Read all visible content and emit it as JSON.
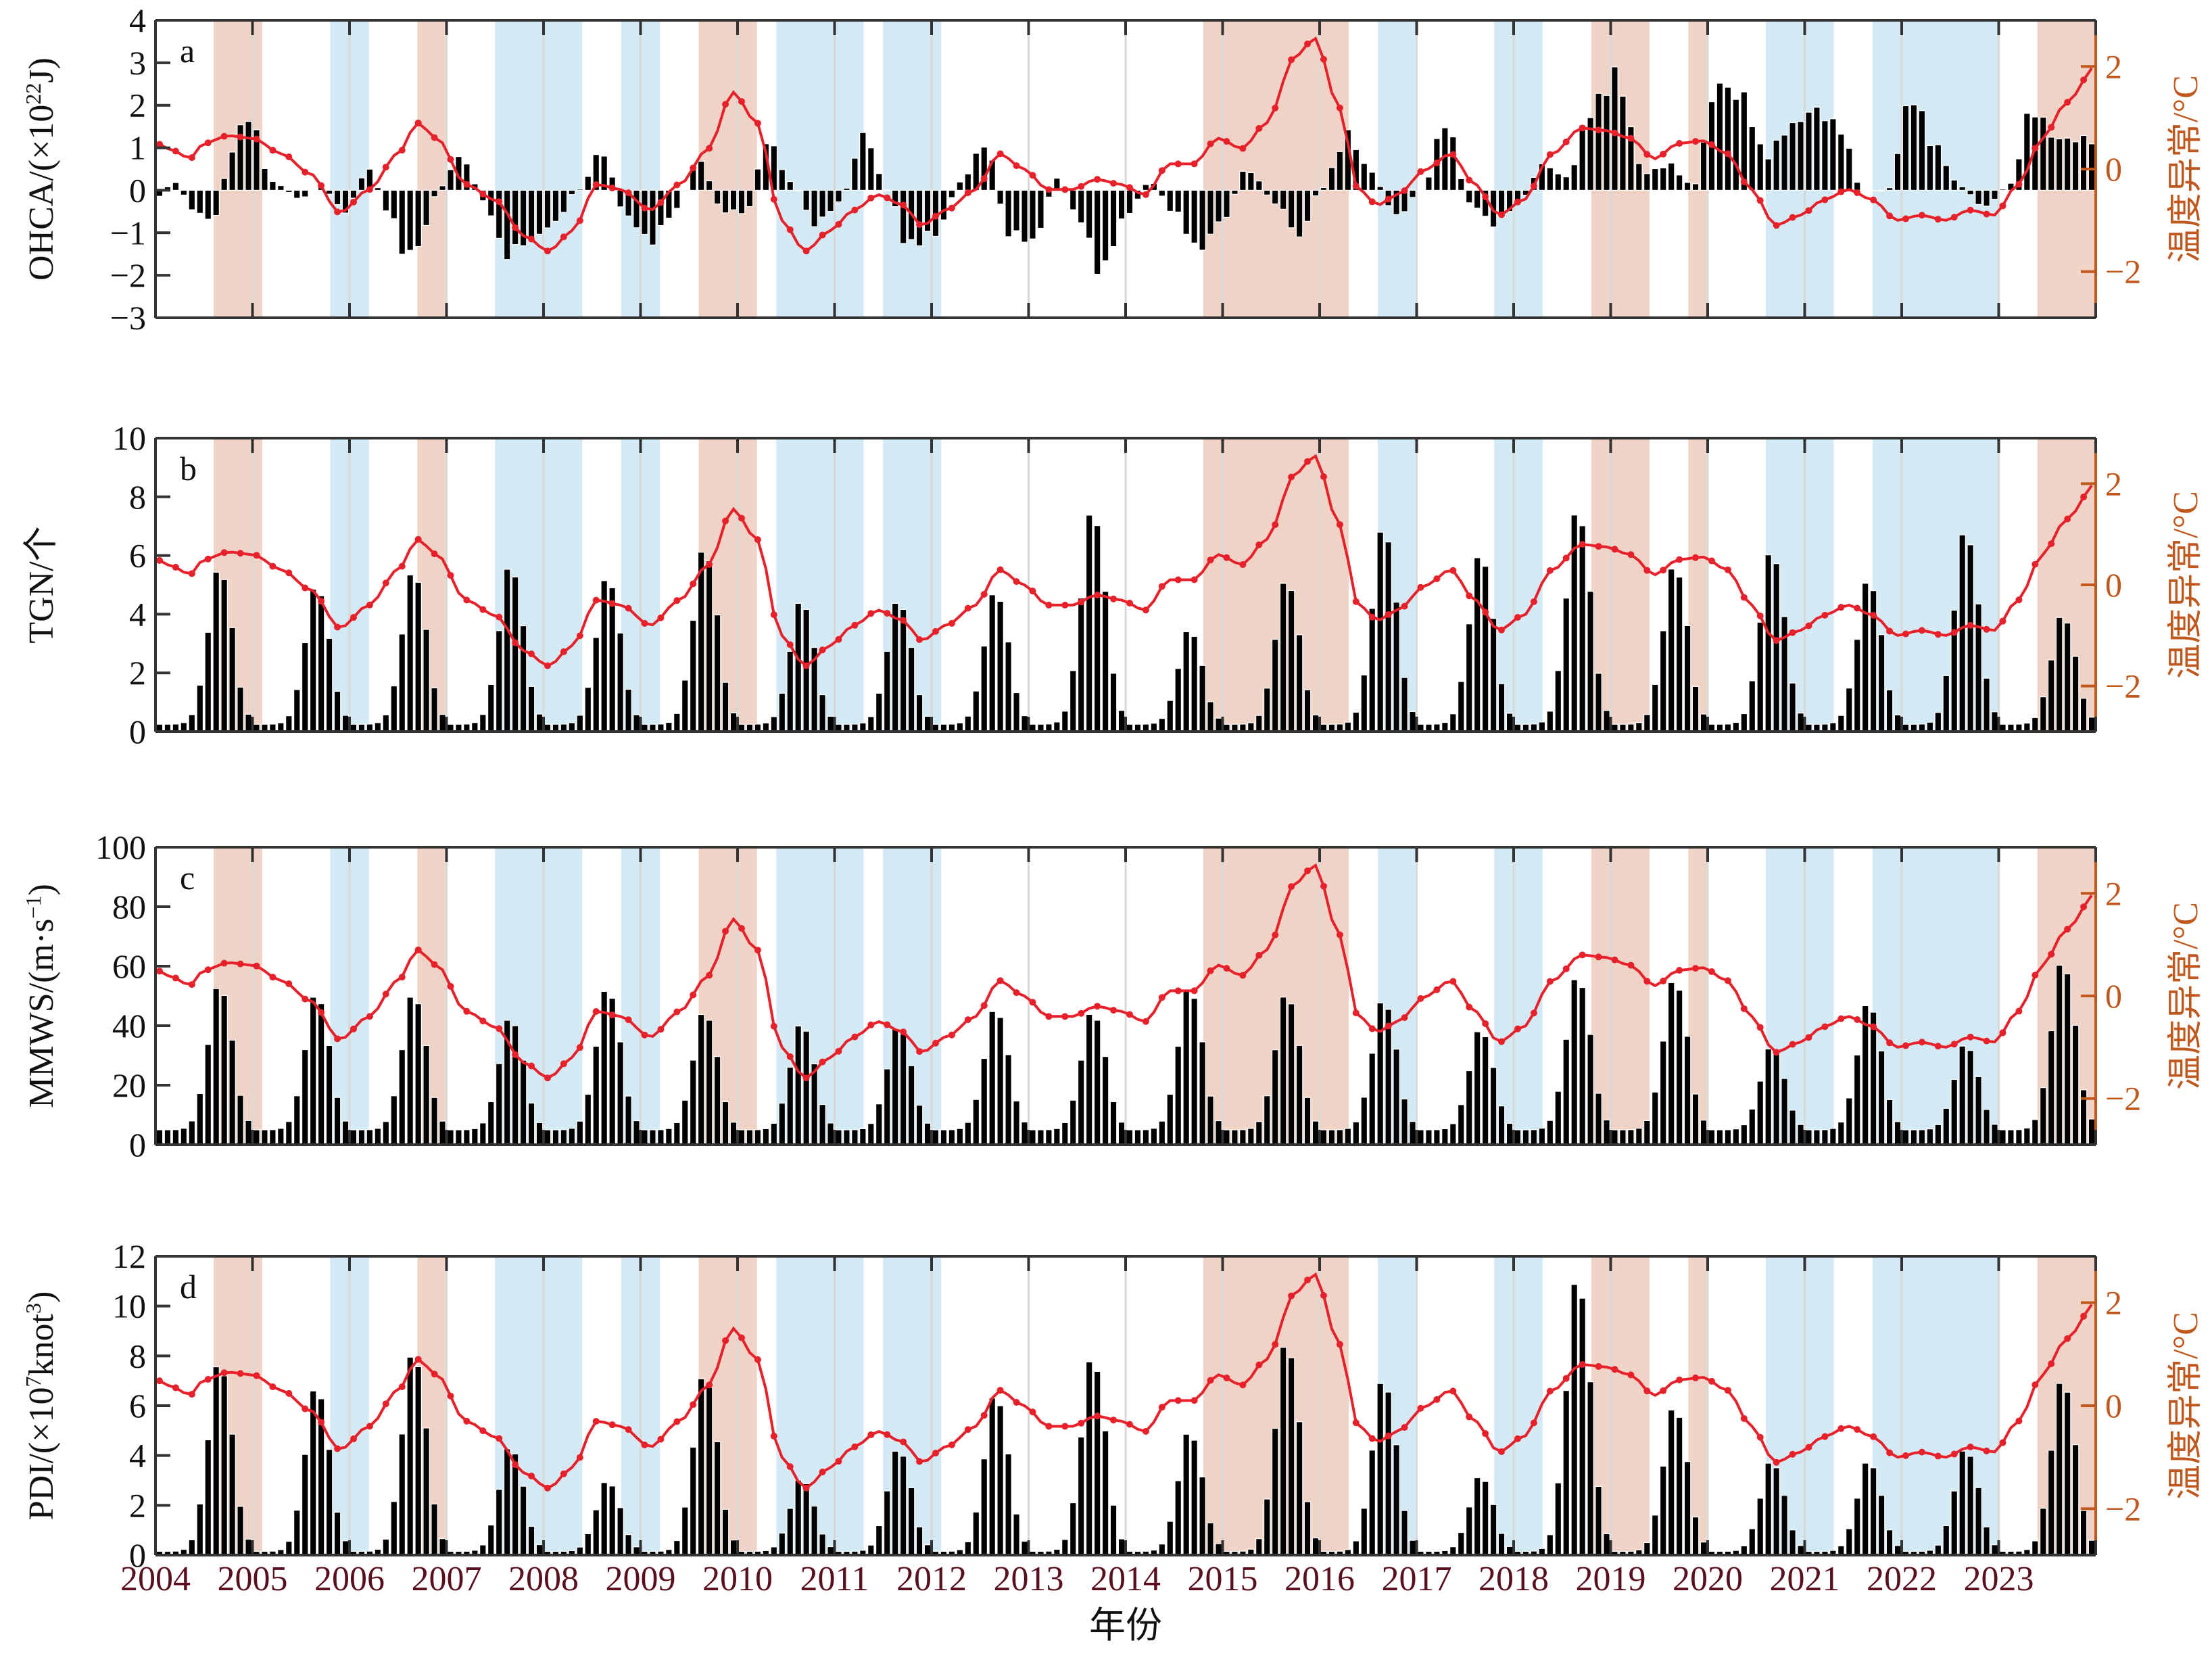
{
  "chart_data": {
    "type": "bar+line",
    "x_label": "年份",
    "x_range": [
      2004.0,
      2024.0
    ],
    "years": [
      "2004",
      "2005",
      "2006",
      "2007",
      "2008",
      "2009",
      "2010",
      "2011",
      "2012",
      "2013",
      "2014",
      "2015",
      "2016",
      "2017",
      "2018",
      "2019",
      "2020",
      "2021",
      "2022",
      "2023"
    ],
    "colors": {
      "bar": "#000000",
      "line": "#e8202a",
      "right_axis": "#c0571d",
      "el_nino_shade": "#efd3c6",
      "la_nina_shade": "#d3eaf5",
      "year_label": "#5a0f1e"
    },
    "el_nino_periods": [
      [
        2004.6,
        2005.1
      ],
      [
        2006.7,
        2007.0
      ],
      [
        2009.6,
        2010.2
      ],
      [
        2014.8,
        2016.3
      ],
      [
        2018.8,
        2019.4
      ],
      [
        2019.8,
        2020.0
      ],
      [
        2023.4,
        2024.0
      ]
    ],
    "la_nina_periods": [
      [
        2005.8,
        2006.2
      ],
      [
        2007.5,
        2008.4
      ],
      [
        2008.8,
        2009.2
      ],
      [
        2010.4,
        2011.3
      ],
      [
        2011.5,
        2012.1
      ],
      [
        2016.6,
        2017.0
      ],
      [
        2017.8,
        2018.3
      ],
      [
        2020.6,
        2021.3
      ],
      [
        2021.7,
        2023.0
      ]
    ],
    "temperature_anomaly": {
      "ylabel": "温度异常/°C",
      "ylim": [
        -2.9,
        2.9
      ],
      "ticks": [
        -2,
        0,
        2
      ],
      "tick_labels": [
        "−2",
        "0",
        "2"
      ],
      "knots_t": [
        2004.0,
        2004.2,
        2004.35,
        2004.5,
        2004.75,
        2005.0,
        2005.3,
        2005.6,
        2005.9,
        2006.2,
        2006.5,
        2006.7,
        2006.9,
        2007.2,
        2007.5,
        2007.8,
        2008.05,
        2008.3,
        2008.55,
        2008.8,
        2009.1,
        2009.4,
        2009.7,
        2009.95,
        2010.2,
        2010.45,
        2010.7,
        2010.95,
        2011.2,
        2011.45,
        2011.7,
        2011.9,
        2012.15,
        2012.45,
        2012.7,
        2012.95,
        2013.2,
        2013.45,
        2013.7,
        2013.95,
        2014.2,
        2014.45,
        2014.7,
        2014.95,
        2015.2,
        2015.45,
        2015.75,
        2015.95,
        2016.2,
        2016.4,
        2016.6,
        2016.8,
        2017.1,
        2017.35,
        2017.6,
        2017.85,
        2018.1,
        2018.4,
        2018.7,
        2018.95,
        2019.2,
        2019.45,
        2019.7,
        2019.95,
        2020.2,
        2020.45,
        2020.7,
        2020.95,
        2021.2,
        2021.45,
        2021.7,
        2021.95,
        2022.2,
        2022.45,
        2022.7,
        2022.95,
        2023.2,
        2023.45,
        2023.7,
        2024.0
      ],
      "knots_v": [
        0.5,
        0.35,
        0.2,
        0.5,
        0.65,
        0.6,
        0.3,
        -0.1,
        -0.85,
        -0.4,
        0.3,
        0.9,
        0.6,
        -0.3,
        -0.6,
        -1.3,
        -1.6,
        -1.2,
        -0.3,
        -0.4,
        -0.8,
        -0.3,
        0.4,
        1.5,
        0.9,
        -1.0,
        -1.6,
        -1.2,
        -0.8,
        -0.5,
        -0.7,
        -1.1,
        -0.8,
        -0.4,
        0.3,
        0.0,
        -0.4,
        -0.4,
        -0.2,
        -0.3,
        -0.5,
        0.1,
        0.1,
        0.6,
        0.4,
        0.9,
        2.2,
        2.55,
        1.2,
        -0.4,
        -0.7,
        -0.5,
        0.0,
        0.3,
        -0.3,
        -0.9,
        -0.6,
        0.3,
        0.8,
        0.75,
        0.6,
        0.2,
        0.5,
        0.55,
        0.3,
        -0.4,
        -1.1,
        -0.9,
        -0.6,
        -0.4,
        -0.6,
        -1.0,
        -0.9,
        -1.0,
        -0.8,
        -0.9,
        -0.3,
        0.6,
        1.3,
        2.0
      ]
    },
    "panels": [
      {
        "id": "a",
        "panel_letter": "a",
        "ylabel_prefix": "OHCA/(×10",
        "ylabel_sup": "22",
        "ylabel_suffix": "J)",
        "ylim": [
          -3,
          4
        ],
        "ticks": [
          -3,
          -2,
          -1,
          0,
          1,
          2,
          3,
          4
        ],
        "tick_labels": [
          "−3",
          "−2",
          "−1",
          "0",
          "1",
          "2",
          "3",
          "4"
        ],
        "bar_series": {
          "type": "annual_anomaly",
          "knots_t": [
            2004.0,
            2004.2,
            2004.4,
            2004.6,
            2004.8,
            2004.95,
            2005.2,
            2005.5,
            2005.7,
            2005.95,
            2006.2,
            2006.4,
            2006.6,
            2006.8,
            2006.9,
            2007.15,
            2007.4,
            2007.6,
            2007.85,
            2008.1,
            2008.35,
            2008.6,
            2008.85,
            2009.1,
            2009.35,
            2009.6,
            2009.85,
            2010.1,
            2010.3,
            2010.55,
            2010.8,
            2011.05,
            2011.3,
            2011.55,
            2011.75,
            2012.05,
            2012.3,
            2012.55,
            2012.8,
            2013.05,
            2013.3,
            2013.5,
            2013.75,
            2014.0,
            2014.25,
            2014.5,
            2014.75,
            2015.0,
            2015.25,
            2015.55,
            2015.8,
            2016.0,
            2016.3,
            2016.5,
            2016.8,
            2017.05,
            2017.3,
            2017.55,
            2017.8,
            2018.05,
            2018.3,
            2018.55,
            2018.8,
            2019.05,
            2019.35,
            2019.6,
            2019.85,
            2020.1,
            2020.35,
            2020.6,
            2020.85,
            2021.1,
            2021.35,
            2021.6,
            2021.85,
            2022.1,
            2022.35,
            2022.6,
            2022.85,
            2023.1,
            2023.35,
            2023.6,
            2024.0
          ],
          "knots_v": [
            -0.2,
            0.2,
            -0.5,
            -0.7,
            1.0,
            1.8,
            0.2,
            -0.2,
            0.1,
            -0.5,
            0.5,
            -0.5,
            -1.6,
            -0.9,
            0.0,
            0.8,
            -0.3,
            -1.5,
            -1.2,
            -0.8,
            0.0,
            0.9,
            -0.6,
            -1.2,
            -0.5,
            0.7,
            -0.5,
            -0.5,
            1.2,
            0.2,
            -0.8,
            -0.3,
            1.3,
            0.0,
            -1.3,
            -1.0,
            0.2,
            1.1,
            -1.0,
            -1.2,
            0.3,
            -0.6,
            -1.9,
            -0.6,
            0.2,
            -0.5,
            -1.4,
            -0.7,
            0.5,
            -0.3,
            -1.1,
            0.0,
            1.3,
            0.5,
            -0.6,
            0.0,
            1.6,
            -0.3,
            -0.8,
            -0.3,
            0.6,
            0.3,
            1.9,
            2.7,
            0.4,
            0.6,
            0.1,
            2.5,
            2.2,
            0.8,
            1.5,
            1.9,
            1.5,
            0.0,
            0.0,
            2.2,
            1.0,
            0.1,
            -0.4,
            0.1,
            1.9,
            1.2,
            1.2
          ]
        }
      },
      {
        "id": "b",
        "panel_letter": "b",
        "ylabel_prefix": "TGN/个",
        "ylabel_sup": "",
        "ylabel_suffix": "",
        "ylim": [
          0,
          10
        ],
        "ticks": [
          0,
          2,
          4,
          6,
          8,
          10
        ],
        "tick_labels": [
          "0",
          "2",
          "4",
          "6",
          "8",
          "10"
        ],
        "bar_series": {
          "type": "seasonal",
          "annual_peak": [
            5.6,
            5.0,
            5.5,
            5.7,
            5.3,
            6.3,
            4.5,
            4.5,
            4.8,
            7.6,
            3.5,
            5.2,
            7.0,
            6.1,
            7.6,
            5.7,
            6.2,
            5.2,
            6.9,
            4.0
          ],
          "trough": 0.25
        }
      },
      {
        "id": "c",
        "panel_letter": "c",
        "ylabel_prefix": "MMWS/(m·s",
        "ylabel_sup": "−1",
        "ylabel_suffix": ")",
        "ylim": [
          0,
          100
        ],
        "ticks": [
          0,
          20,
          40,
          60,
          80,
          100
        ],
        "tick_labels": [
          "0",
          "20",
          "40",
          "60",
          "80",
          "100"
        ],
        "bar_series": {
          "type": "seasonal",
          "annual_peak": [
            54,
            51,
            51,
            43,
            53,
            45,
            41,
            40,
            46,
            45,
            53,
            51,
            49,
            39,
            57,
            56,
            33,
            48,
            34,
            62
          ],
          "trough": 5
        }
      },
      {
        "id": "d",
        "panel_letter": "d",
        "ylabel_prefix": "PDI/(×10",
        "ylabel_sup": "7",
        "ylabel_suffix": "knot",
        "ylabel_sup2": "3",
        "ylabel_suffix2": ")",
        "ylim": [
          0,
          12
        ],
        "ticks": [
          0,
          2,
          4,
          6,
          8,
          10,
          12
        ],
        "tick_labels": [
          "0",
          "2",
          "4",
          "6",
          "8",
          "10",
          "12"
        ],
        "bar_series": {
          "type": "seasonal",
          "annual_peak": [
            7.8,
            6.8,
            8.2,
            4.4,
            3.0,
            7.3,
            3.1,
            4.3,
            6.5,
            8.0,
            5.0,
            8.6,
            7.1,
            3.2,
            11.2,
            6.0,
            3.8,
            3.8,
            4.3,
            7.1
          ],
          "trough": 0.15
        }
      }
    ]
  }
}
